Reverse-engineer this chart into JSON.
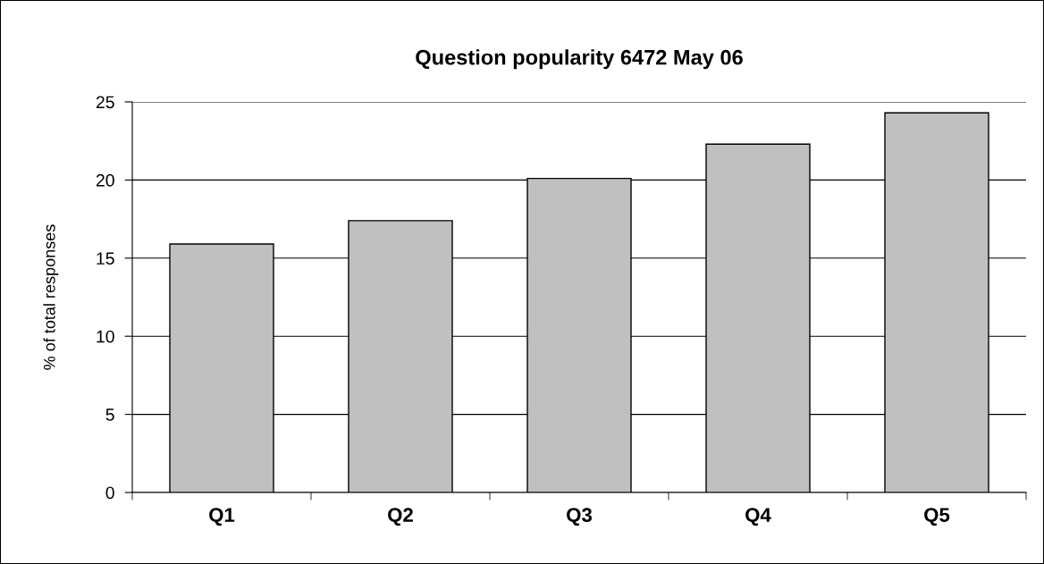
{
  "chart_data": {
    "type": "bar",
    "title": "Question popularity 6472 May 06",
    "ylabel": "% of total responses",
    "categories": [
      "Q1",
      "Q2",
      "Q3",
      "Q4",
      "Q5"
    ],
    "values": [
      15.9,
      17.4,
      20.1,
      22.3,
      24.3
    ],
    "color": "#c0c0c0",
    "ylim": [
      0,
      25
    ],
    "yticks": [
      0,
      5,
      10,
      15,
      20,
      25
    ],
    "grid": "y"
  }
}
